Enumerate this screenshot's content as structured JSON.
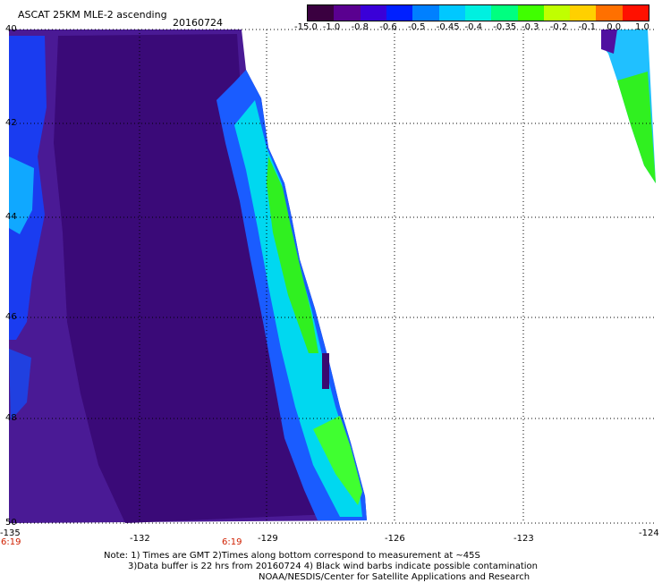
{
  "header": {
    "title": "ASCAT 25KM MLE-2 ascending",
    "date": "20160724"
  },
  "colorbar": {
    "labels": [
      "-15.0",
      "-1.0",
      "-0.8",
      "-0.6",
      "-0.5",
      "-0.45",
      "-0.4",
      "-0.35",
      "-0.3",
      "-0.2",
      "-0.1",
      "0.0",
      "1.0"
    ],
    "colors": [
      "#3a0040",
      "#5a0090",
      "#3a00d8",
      "#0020ff",
      "#0080ff",
      "#00c8ff",
      "#00f0e0",
      "#00ff80",
      "#40ff00",
      "#c0ff00",
      "#ffd000",
      "#ff7000",
      "#ff1000"
    ]
  },
  "axes": {
    "x_labels": [
      "-135",
      "-132",
      "-129",
      "-126",
      "-123",
      "-124"
    ],
    "y_labels": [
      "40",
      "42",
      "44",
      "46",
      "48",
      "50"
    ]
  },
  "time_labels": [
    "6:19",
    "6:19"
  ],
  "notes": [
    "Note: 1) Times are GMT 2)Times along bottom correspond to measurement at ~45S",
    "3)Data buffer is 22 hrs from 20160724 4) Black wind barbs indicate possible contamination",
    "NOAA/NESDIS/Center for Satellite Applications and Research"
  ]
}
